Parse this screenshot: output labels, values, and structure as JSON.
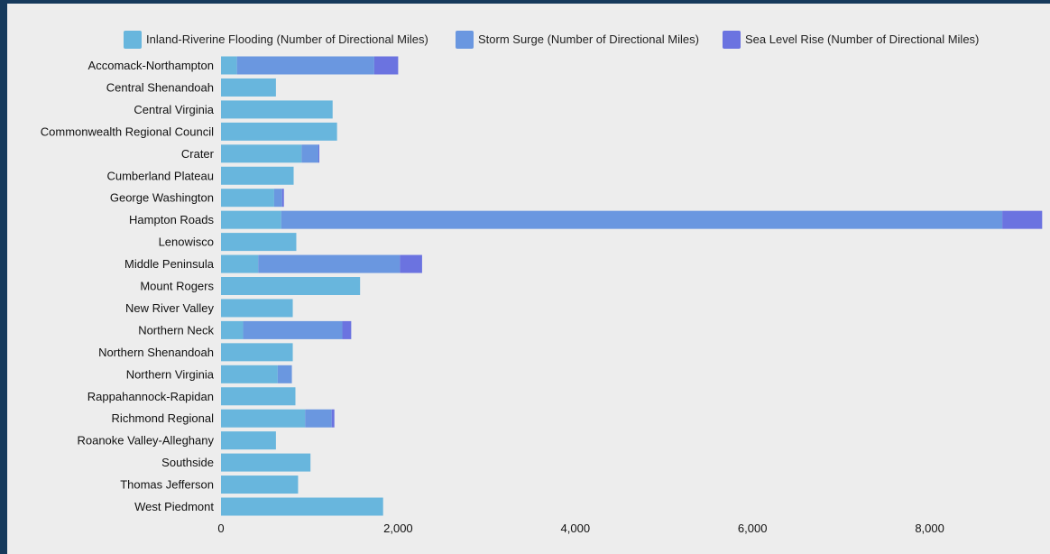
{
  "chart_data": {
    "type": "bar",
    "orientation": "horizontal",
    "stacked": true,
    "title": "",
    "xlabel": "",
    "ylabel": "",
    "xlim": [
      0,
      9280
    ],
    "x_ticks": [
      0,
      2000,
      4000,
      6000,
      8000
    ],
    "x_tick_labels": [
      "0",
      "2,000",
      "4,000",
      "6,000",
      "8,000"
    ],
    "grid": false,
    "legend_position": "top",
    "categories": [
      "Accomack-Northampton",
      "Central Shenandoah",
      "Central Virginia",
      "Commonwealth Regional Council",
      "Crater",
      "Cumberland Plateau",
      "George Washington",
      "Hampton Roads",
      "Lenowisco",
      "Middle Peninsula",
      "Mount Rogers",
      "New River Valley",
      "Northern Neck",
      "Northern Shenandoah",
      "Northern Virginia",
      "Rappahannock-Rapidan",
      "Richmond Regional",
      "Roanoke Valley-Alleghany",
      "Southside",
      "Thomas Jefferson",
      "West Piedmont"
    ],
    "series": [
      {
        "name": "Inland-Riverine Flooding (Number of Directional Miles)",
        "color": "#68b6dd",
        "values": [
          180,
          620,
          1260,
          1310,
          910,
          820,
          600,
          680,
          850,
          420,
          1570,
          810,
          250,
          810,
          640,
          840,
          950,
          620,
          1010,
          870,
          1830
        ]
      },
      {
        "name": "Storm Surge (Number of Directional Miles)",
        "color": "#6a97e0",
        "values": [
          1550,
          0,
          0,
          0,
          190,
          0,
          90,
          8140,
          0,
          1600,
          0,
          0,
          1120,
          0,
          160,
          0,
          300,
          0,
          0,
          0,
          0
        ]
      },
      {
        "name": "Sea Level Rise (Number of Directional Miles)",
        "color": "#6b73e0",
        "values": [
          270,
          0,
          0,
          0,
          10,
          0,
          20,
          450,
          0,
          250,
          0,
          0,
          100,
          0,
          0,
          0,
          30,
          0,
          0,
          0,
          0
        ]
      }
    ]
  }
}
